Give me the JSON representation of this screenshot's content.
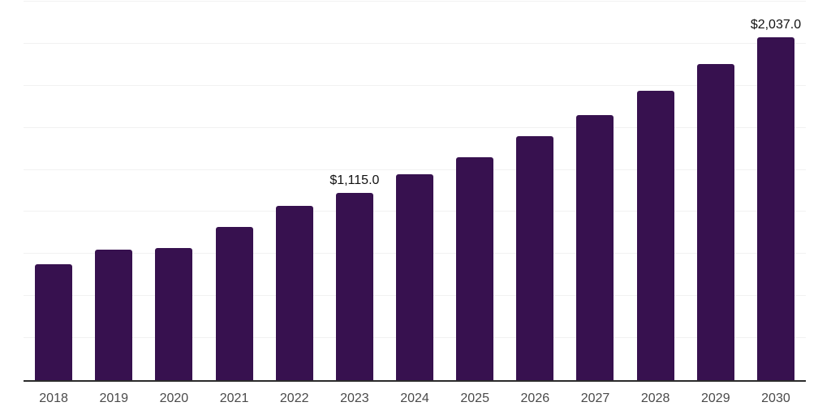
{
  "chart_data": {
    "type": "bar",
    "title": "",
    "xlabel": "",
    "ylabel": "",
    "categories": [
      "2018",
      "2019",
      "2020",
      "2021",
      "2022",
      "2023",
      "2024",
      "2025",
      "2026",
      "2027",
      "2028",
      "2029",
      "2030"
    ],
    "values": [
      690,
      776,
      785,
      913,
      1037,
      1115,
      1222,
      1327,
      1450,
      1578,
      1718,
      1878,
      2037
    ],
    "data_labels": {
      "2023": "$1,115.0",
      "2030": "$2,037.0"
    },
    "ylim": [
      0,
      2250
    ],
    "gridline_interval": 250,
    "grid": true,
    "legend": false,
    "colors": {
      "bar": "#37114f",
      "gridline": "#f1f1f1",
      "axis_line": "#2b2b2b",
      "tick_label": "#4a4a4a",
      "value_label": "#111111",
      "background": "#ffffff"
    }
  }
}
